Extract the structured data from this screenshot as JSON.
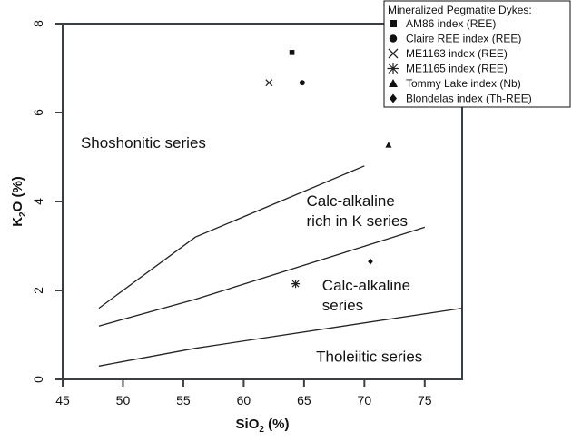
{
  "chart_data": {
    "type": "scatter",
    "title": "",
    "xlabel": "SiO",
    "xlabel_sub": "2",
    "xlabel_suffix": " (%)",
    "ylabel": "K",
    "ylabel_sub": "2",
    "ylabel_suffix": "O (%)",
    "xlim": [
      45,
      78.1
    ],
    "ylim": [
      0,
      8
    ],
    "xticks": [
      45,
      50,
      55,
      60,
      65,
      70,
      75
    ],
    "yticks": [
      0,
      2,
      4,
      6,
      8
    ],
    "grid": false,
    "legend": {
      "title": "Mineralized Pegmatite Dykes:",
      "placement": "top-right"
    },
    "series": [
      {
        "name": "AM86 index (REE)",
        "marker": "square",
        "x": [
          64.0
        ],
        "y": [
          7.35
        ]
      },
      {
        "name": "Claire REE index (REE)",
        "marker": "circle",
        "x": [
          64.85
        ],
        "y": [
          6.67
        ]
      },
      {
        "name": "ME1163 index (REE)",
        "marker": "x",
        "x": [
          62.1
        ],
        "y": [
          6.67
        ]
      },
      {
        "name": "ME1165 index (REE)",
        "marker": "asterisk",
        "x": [
          64.3
        ],
        "y": [
          2.15
        ]
      },
      {
        "name": "Tommy Lake index (Nb)",
        "marker": "triangle",
        "x": [
          72.0
        ],
        "y": [
          5.27
        ]
      },
      {
        "name": "Blondelas index (Th-REE)",
        "marker": "diamond",
        "x": [
          70.5
        ],
        "y": [
          2.65
        ]
      }
    ],
    "boundaries": [
      {
        "name": "shoshonitic-boundary",
        "points": [
          [
            48,
            1.6
          ],
          [
            56,
            3.2
          ],
          [
            70,
            4.8
          ]
        ]
      },
      {
        "name": "high-k-boundary",
        "points": [
          [
            48,
            1.2
          ],
          [
            56,
            1.8
          ],
          [
            75,
            3.42
          ]
        ]
      },
      {
        "name": "tholeiitic-boundary",
        "points": [
          [
            48,
            0.3
          ],
          [
            56,
            0.7
          ],
          [
            78.1,
            1.6
          ]
        ]
      }
    ],
    "annotations": [
      {
        "lines": [
          "Shoshonitic series"
        ],
        "x": 46.5,
        "y": 5.2
      },
      {
        "lines": [
          "Calc-alkaline",
          "rich in K series"
        ],
        "x": 65.2,
        "y": 3.9
      },
      {
        "lines": [
          "Calc-alkaline",
          "series"
        ],
        "x": 66.5,
        "y": 2.0
      },
      {
        "lines": [
          "Tholeiitic series"
        ],
        "x": 66.0,
        "y": 0.4
      }
    ]
  }
}
